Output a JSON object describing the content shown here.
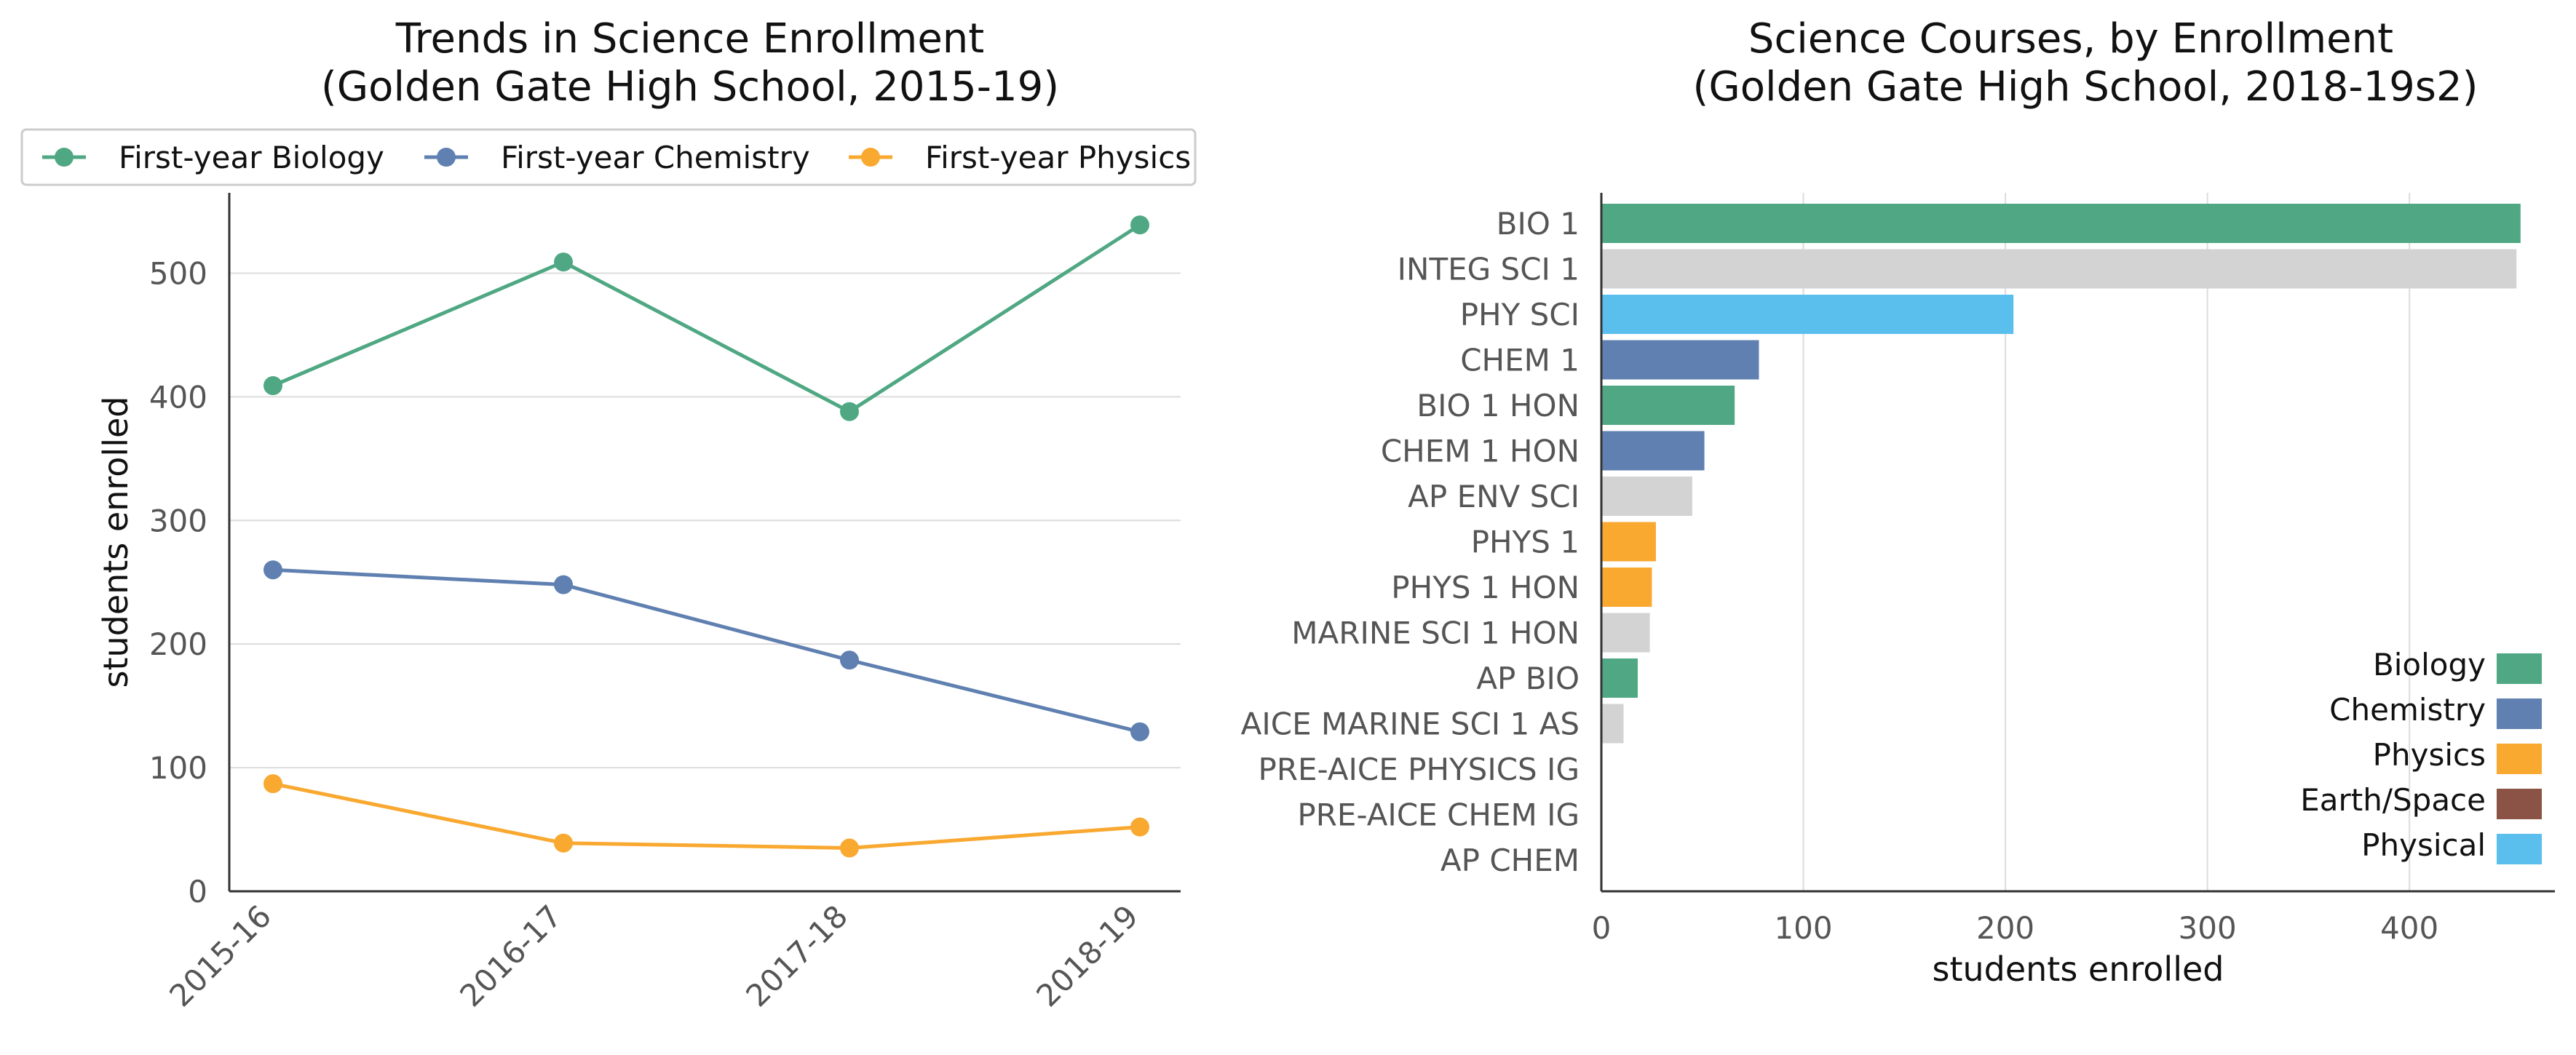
{
  "chart_data": [
    {
      "type": "line",
      "title": "Trends in Science Enrollment\n(Golden Gate High School, 2015-19)",
      "xlabel": "",
      "ylabel": "students enrolled",
      "categories": [
        "2015-16",
        "2016-17",
        "2017-18",
        "2018-19"
      ],
      "series": [
        {
          "name": "First-year Biology",
          "color": "#4FA883",
          "values": [
            409,
            509,
            388,
            539
          ]
        },
        {
          "name": "First-year Chemistry",
          "color": "#5F80B0",
          "values": [
            260,
            248,
            187,
            129
          ]
        },
        {
          "name": "First-year Physics",
          "color": "#F9A830",
          "values": [
            87,
            39,
            35,
            52
          ]
        }
      ],
      "ylim": [
        0,
        565
      ],
      "yticks": [
        0,
        100,
        200,
        300,
        400,
        500
      ],
      "grid": "horizontal",
      "legend_placement": "top"
    },
    {
      "type": "bar",
      "orientation": "horizontal",
      "title": "Science Courses, by Enrollment\n(Golden Gate High School, 2018-19s2)",
      "xlabel": "students enrolled",
      "ylabel": "",
      "categories": [
        "BIO 1",
        "INTEG SCI 1",
        "PHY SCI",
        "CHEM 1",
        "BIO 1 HON",
        "CHEM 1 HON",
        "AP ENV SCI",
        "PHYS 1",
        "PHYS 1 HON",
        "MARINE SCI 1 HON",
        "AP BIO",
        "AICE MARINE SCI 1 AS",
        "PRE-AICE PHYSICS IG",
        "PRE-AICE CHEM IG",
        "AP CHEM"
      ],
      "values": [
        455,
        453,
        204,
        78,
        66,
        51,
        45,
        27,
        25,
        24,
        18,
        11,
        0,
        0,
        0
      ],
      "bar_groups": [
        "Biology",
        "Other",
        "Physical",
        "Chemistry",
        "Biology",
        "Chemistry",
        "Other",
        "Physics",
        "Physics",
        "Other",
        "Biology",
        "Other",
        "Physics",
        "Chemistry",
        "Chemistry"
      ],
      "group_colors": {
        "Biology": "#4FA883",
        "Chemistry": "#5F80B0",
        "Physics": "#F9A830",
        "Earth/Space": "#8B5345",
        "Physical": "#5BBFEE",
        "Other": "#D3D3D3"
      },
      "legend": [
        "Biology",
        "Chemistry",
        "Physics",
        "Earth/Space",
        "Physical"
      ],
      "xlim": [
        0,
        472
      ],
      "xticks": [
        0,
        100,
        200,
        300,
        400
      ],
      "grid": "vertical",
      "legend_placement": "lower-right"
    }
  ]
}
